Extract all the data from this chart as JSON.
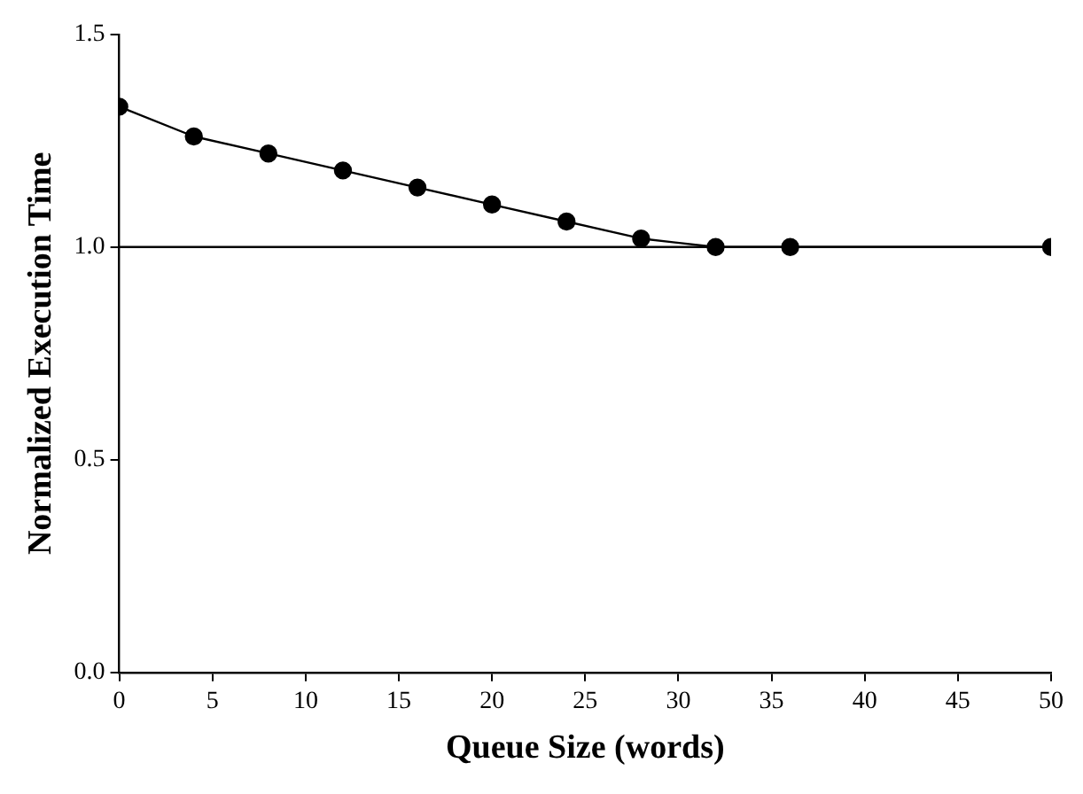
{
  "chart_data": {
    "type": "line",
    "xlabel": "Queue Size (words)",
    "ylabel": "Normalized Execution Time",
    "x": [
      0,
      4,
      8,
      12,
      16,
      20,
      24,
      28,
      32,
      36,
      50
    ],
    "series": [
      {
        "color": "#000000",
        "values": [
          1.33,
          1.26,
          1.22,
          1.18,
          1.14,
          1.1,
          1.06,
          1.02,
          1.0,
          1.0,
          1.0
        ]
      }
    ],
    "xlim": [
      0,
      50
    ],
    "xticks": [
      0,
      5,
      10,
      15,
      20,
      25,
      30,
      35,
      40,
      45,
      50
    ],
    "ylim": [
      0,
      1.5
    ],
    "yticks": [
      {
        "value": 0,
        "label": "0.0"
      },
      {
        "value": 0.5,
        "label": "0.5"
      },
      {
        "value": 1,
        "label": "1.0"
      },
      {
        "value": 1.5,
        "label": "1.5"
      }
    ],
    "ref_lines": [
      {
        "axis": "y",
        "value": 1,
        "color": "#000000"
      }
    ],
    "grid": false,
    "legend": false,
    "marker": "circle",
    "line_style": "solid"
  }
}
